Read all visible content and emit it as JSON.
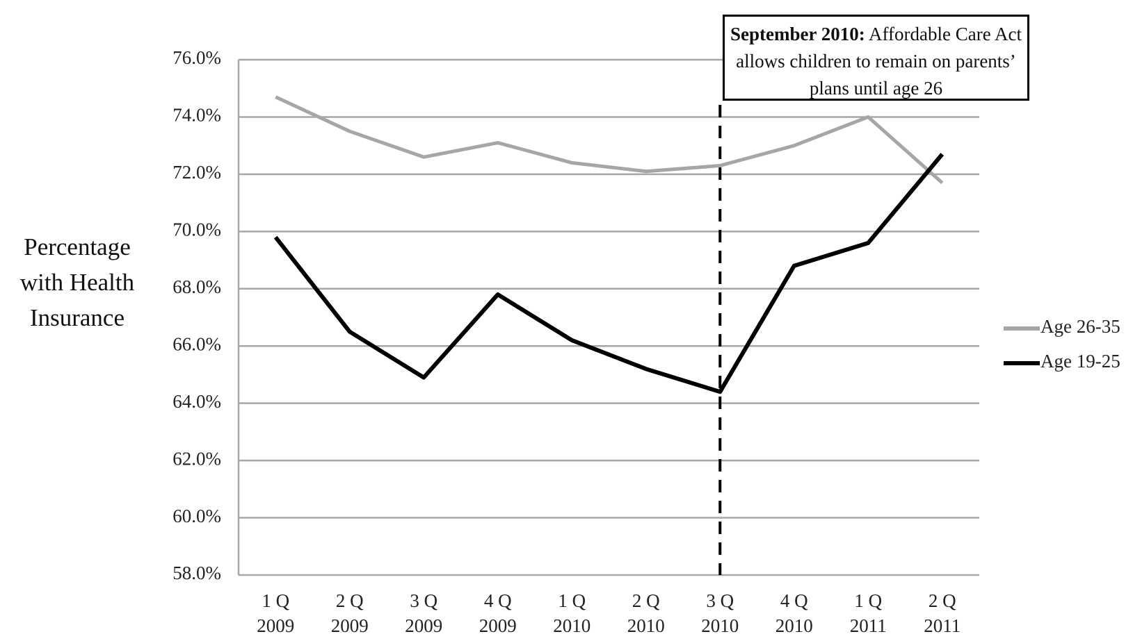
{
  "chart_data": {
    "type": "line",
    "y_axis_label": "Percentage with Health Insurance",
    "annotation": {
      "bold": "September 2010:",
      "text": "Affordable Care Act allows children to remain on parents’ plans until age 26"
    },
    "categories": [
      "1 Q\n2009",
      "2 Q\n2009",
      "3 Q\n2009",
      "4 Q\n2009",
      "1 Q\n2010",
      "2 Q\n2010",
      "3 Q\n2010",
      "4 Q\n2010",
      "1 Q\n2011",
      "2 Q\n2011"
    ],
    "series": [
      {
        "name": "Age 26-35",
        "color": "#a6a6a6",
        "values": [
          74.7,
          73.5,
          72.6,
          73.1,
          72.4,
          72.1,
          72.3,
          73.0,
          74.0,
          71.7
        ]
      },
      {
        "name": "Age 19-25",
        "color": "#000000",
        "values": [
          69.8,
          66.5,
          64.9,
          67.8,
          66.2,
          65.2,
          64.4,
          68.8,
          69.6,
          72.7
        ]
      }
    ],
    "ylim": [
      58,
      76
    ],
    "yticks": [
      {
        "value": 58,
        "label": "58.0%"
      },
      {
        "value": 60,
        "label": "60.0%"
      },
      {
        "value": 62,
        "label": "62.0%"
      },
      {
        "value": 64,
        "label": "64.0%"
      },
      {
        "value": 66,
        "label": "66.0%"
      },
      {
        "value": 68,
        "label": "68.0%"
      },
      {
        "value": 70,
        "label": "70.0%"
      },
      {
        "value": 72,
        "label": "72.0%"
      },
      {
        "value": 74,
        "label": "74.0%"
      },
      {
        "value": 76,
        "label": "76.0%"
      }
    ],
    "grid": true,
    "legend": "right"
  }
}
